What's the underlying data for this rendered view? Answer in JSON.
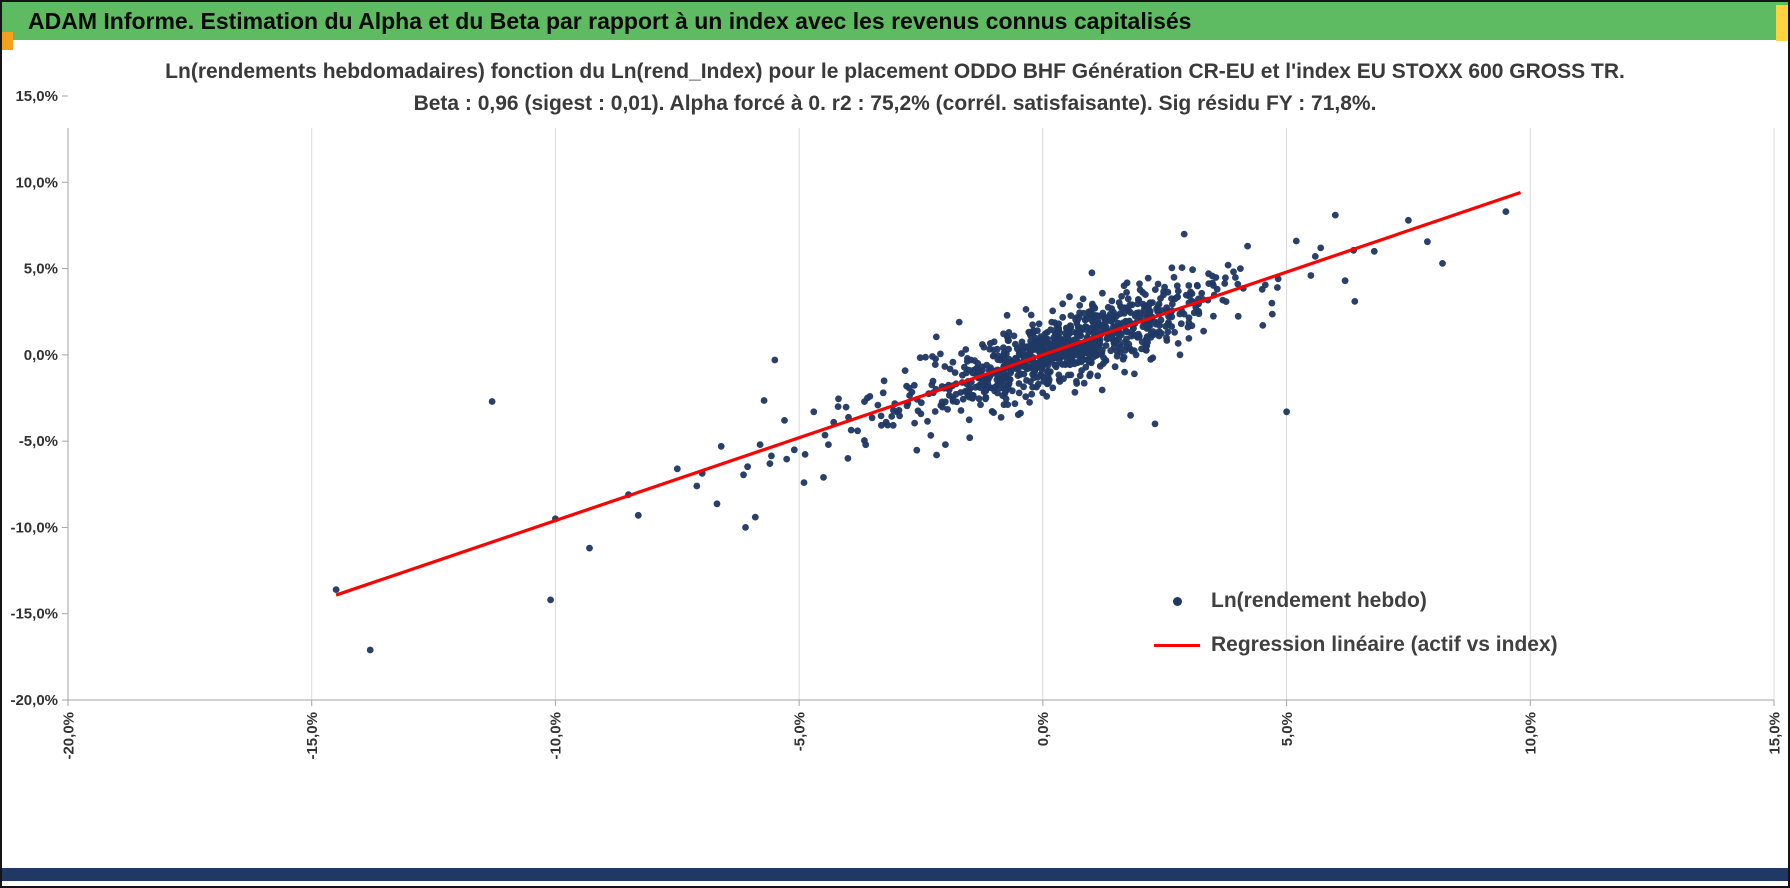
{
  "header": {
    "title": "ADAM Informe. Estimation du Alpha et du Beta par rapport à un index avec les revenus connus capitalisés",
    "bg_color": "#5ebb61",
    "accent_orange": "#f2a01e",
    "accent_yellow": "#ffd23f"
  },
  "footer": {
    "bar_color": "#203864"
  },
  "chart_data": {
    "type": "scatter",
    "title_line1": "Ln(rendements hebdomadaires) fonction du Ln(rend_Index) pour le placement ODDO BHF Génération CR-EU et l'index EU STOXX 600 GROSS TR.",
    "title_line2": "Beta : 0,96 (sigest : 0,01). Alpha forcé à 0. r2 : 75,2% (corrél. satisfaisante). Sig résidu FY : 71,8%.",
    "stats": {
      "beta": "0,96",
      "sigest": "0,01",
      "alpha": "forcé à 0",
      "r2": "75,2%",
      "correlation": "satisfaisante",
      "sig_residu_fy": "71,8%"
    },
    "xlim": [
      -0.2,
      0.15
    ],
    "ylim": [
      -0.2,
      0.15
    ],
    "x_ticks": [
      -0.2,
      -0.15,
      -0.1,
      -0.05,
      0,
      0.05,
      0.1,
      0.15
    ],
    "x_tick_labels": [
      "-20,0%",
      "-15,0%",
      "-10,0%",
      "-5,0%",
      "0,0%",
      "5,0%",
      "10,0%",
      "15,0%"
    ],
    "y_ticks": [
      0.15,
      0.1,
      0.05,
      0,
      -0.05,
      -0.1,
      -0.15,
      -0.2
    ],
    "y_tick_labels": [
      "15,0%",
      "10,0%",
      "5,0%",
      "0,0%",
      "-5,0%",
      "-10,0%",
      "-15,0%",
      "-20,0%"
    ],
    "grid": "vertical-only",
    "grid_color": "#d9d9d9",
    "axis_color": "#a6a6a6",
    "regression": {
      "beta": 0.96,
      "alpha": 0,
      "x_start": -0.145,
      "x_end": 0.098,
      "color": "#fe0000"
    },
    "scatter": {
      "color": "#1f3864",
      "cloud": {
        "seed": 20240517,
        "n": 950,
        "x_mean": 0.004,
        "x_std": 0.014,
        "residual_std": 0.0095,
        "tail_fraction": 0.14,
        "tail_x_std": 0.028,
        "tail_residual_std": 0.017,
        "beta": 0.96
      },
      "outliers": [
        [
          -0.145,
          -0.136
        ],
        [
          -0.138,
          -0.171
        ],
        [
          -0.113,
          -0.027
        ],
        [
          -0.101,
          -0.142
        ],
        [
          -0.1,
          -0.095
        ],
        [
          -0.093,
          -0.112
        ],
        [
          -0.085,
          -0.081
        ],
        [
          -0.083,
          -0.093
        ],
        [
          -0.075,
          -0.066
        ],
        [
          -0.071,
          -0.076
        ],
        [
          -0.066,
          -0.053
        ],
        [
          -0.061,
          -0.1
        ],
        [
          -0.059,
          -0.094
        ],
        [
          -0.058,
          -0.052
        ],
        [
          -0.056,
          -0.063
        ],
        [
          -0.055,
          -0.003
        ],
        [
          -0.053,
          -0.038
        ],
        [
          -0.051,
          -0.055
        ],
        [
          -0.049,
          -0.074
        ],
        [
          -0.047,
          -0.033
        ],
        [
          -0.045,
          -0.071
        ],
        [
          -0.044,
          -0.052
        ],
        [
          -0.042,
          -0.03
        ],
        [
          -0.04,
          -0.06
        ],
        [
          -0.038,
          -0.044
        ],
        [
          -0.036,
          -0.025
        ],
        [
          -0.02,
          -0.052
        ],
        [
          -0.015,
          -0.048
        ],
        [
          0.018,
          -0.035
        ],
        [
          0.023,
          -0.04
        ],
        [
          0.029,
          0.07
        ],
        [
          0.034,
          0.047
        ],
        [
          0.038,
          0.052
        ],
        [
          0.04,
          0.041
        ],
        [
          0.042,
          0.063
        ],
        [
          0.045,
          0.038
        ],
        [
          0.047,
          0.03
        ],
        [
          0.05,
          -0.033
        ],
        [
          0.052,
          0.066
        ],
        [
          0.055,
          0.046
        ],
        [
          0.057,
          0.062
        ],
        [
          0.06,
          0.081
        ],
        [
          0.062,
          0.043
        ],
        [
          0.064,
          0.031
        ],
        [
          0.068,
          0.06
        ],
        [
          0.075,
          0.078
        ],
        [
          0.082,
          0.053
        ],
        [
          0.095,
          0.083
        ]
      ]
    },
    "legend": [
      {
        "marker": "dot",
        "label": "Ln(rendement hebdo)"
      },
      {
        "marker": "line",
        "label": "Regression linéaire (actif vs index)"
      }
    ]
  }
}
